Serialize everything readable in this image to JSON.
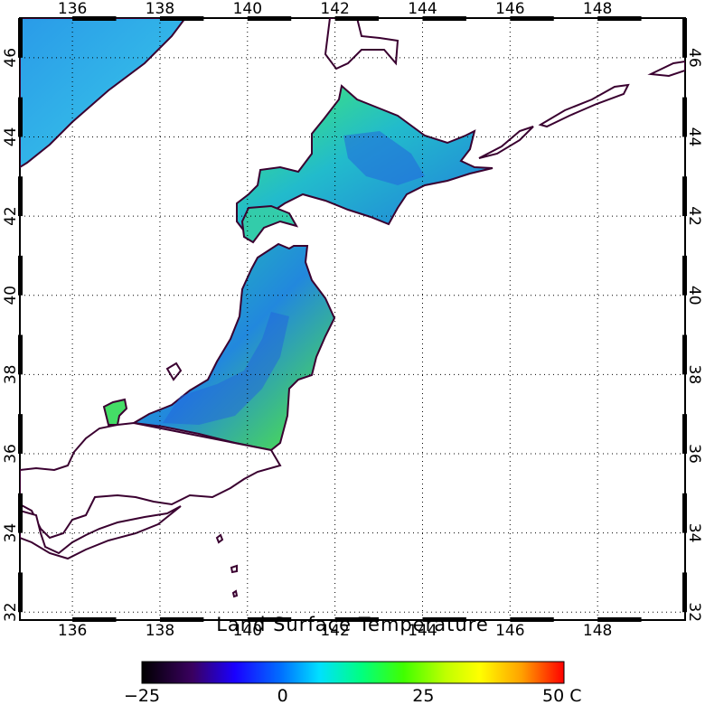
{
  "map": {
    "title": "Land Surface Temperature",
    "lon_labels": [
      "136",
      "138",
      "140",
      "142",
      "144",
      "146",
      "148"
    ],
    "lat_labels": [
      "32",
      "34",
      "36",
      "38",
      "40",
      "42",
      "44",
      "46"
    ],
    "lon_values": [
      136,
      138,
      140,
      142,
      144,
      146,
      148
    ],
    "lat_values": [
      32,
      34,
      36,
      38,
      40,
      42,
      44,
      46
    ],
    "lon_range": [
      134.8,
      150.0
    ],
    "lat_range": [
      31.8,
      47.0
    ],
    "gridlines": "dotted",
    "land_outline_color": "#3a0030",
    "variable": "Land Surface Temperature"
  },
  "colorbar": {
    "min": -25,
    "max": 50,
    "unit": "C",
    "tick_labels": [
      "−25",
      "0",
      "25",
      "50 C"
    ],
    "tick_values": [
      -25,
      0,
      25,
      50
    ],
    "colors": [
      "#000000",
      "#3a0060",
      "#1a00ff",
      "#0070ff",
      "#00e0ff",
      "#00ff80",
      "#40ff00",
      "#c0ff00",
      "#ffff00",
      "#ffa000",
      "#ff0000"
    ]
  },
  "data_colors": {
    "sea_of_japan": "#33aaee",
    "cold_land": "#2266dd",
    "mid_land": "#22ccbb",
    "warm_land": "#44ee55"
  }
}
